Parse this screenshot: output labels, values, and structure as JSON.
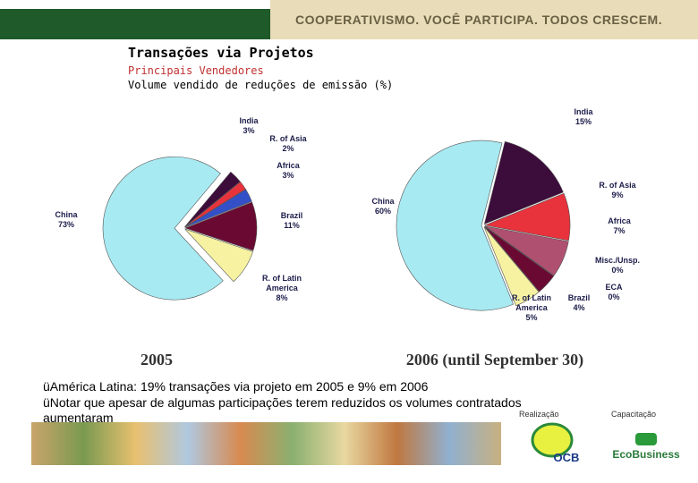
{
  "header": {
    "slogan": "COOPERATIVISMO. VOCÊ PARTICIPA. TODOS CRESCEM."
  },
  "title": "Transações via Projetos",
  "subtitle": "Principais Vendedores",
  "description": "Volume vendido de reduções de emissão (%)",
  "chart_data": [
    {
      "type": "pie",
      "title": "2005",
      "categories": [
        "India",
        "R. of Asia",
        "Africa",
        "Brazil",
        "R. of Latin America",
        "China"
      ],
      "values": [
        3,
        2,
        3,
        11,
        8,
        73
      ],
      "value_labels": [
        "3%",
        "2%",
        "3%",
        "11%",
        "8%",
        "73%"
      ],
      "colors": [
        "#3c0c3a",
        "#e8323c",
        "#3450c8",
        "#6a0a32",
        "#f6f2a2",
        "#a8eaf2"
      ]
    },
    {
      "type": "pie",
      "title": "2006 (until September 30)",
      "categories": [
        "India",
        "R. of Asia",
        "Africa",
        "Misc./Unsp.",
        "ECA",
        "Brazil",
        "R. of Latin America",
        "China"
      ],
      "values": [
        15,
        9,
        7,
        0,
        0,
        4,
        5,
        60
      ],
      "value_labels": [
        "15%",
        "9%",
        "7%",
        "0%",
        "0%",
        "4%",
        "5%",
        "60%"
      ],
      "colors": [
        "#3c0c3a",
        "#e8323c",
        "#b05070",
        "#8888cc",
        "#3450c8",
        "#6a0a32",
        "#f6f2a2",
        "#a8eaf2"
      ]
    }
  ],
  "bullets": [
    "üAmérica Latina: 19% transações via projeto em 2005 e 9% em 2006",
    "üNotar que apesar de algumas participações terem reduzidos os volumes contratados aumentaram"
  ],
  "footer": {
    "realizacao": "Realização",
    "capacitacao": "Capacitação",
    "ocb": "OCB",
    "ecobusiness": "EcoBusiness"
  }
}
